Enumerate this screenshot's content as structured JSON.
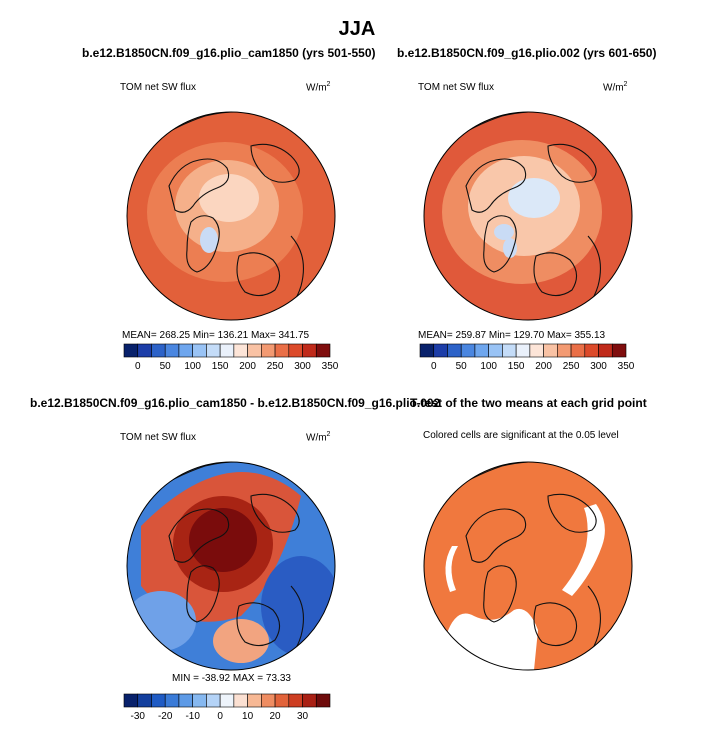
{
  "title": "JJA",
  "panels": [
    {
      "title": "b.e12.B1850CN.f09_g16.plio_cam1850 (yrs 501-550)",
      "left_label": "TOM net SW flux",
      "units": "W/m",
      "units_sup": "2",
      "stats": "MEAN= 268.25   Min= 136.21   Max= 341.75",
      "colorbar_ticks": [
        "0",
        "50",
        "100",
        "150",
        "200",
        "250",
        "300",
        "350"
      ]
    },
    {
      "title": "b.e12.B1850CN.f09_g16.plio.002 (yrs 601-650)",
      "left_label": "TOM net SW flux",
      "units": "W/m",
      "units_sup": "2",
      "stats": "MEAN= 259.87   Min= 129.70   Max= 355.13",
      "colorbar_ticks": [
        "0",
        "50",
        "100",
        "150",
        "200",
        "250",
        "300",
        "350"
      ]
    },
    {
      "title": "b.e12.B1850CN.f09_g16.plio_cam1850 - b.e12.B1850CN.f09_g16.plio.002",
      "left_label": "TOM net SW flux",
      "units": "W/m",
      "units_sup": "2",
      "stats": "MIN = -38.92  MAX =   73.33",
      "colorbar_ticks": [
        "-30",
        "-20",
        "-10",
        "0",
        "10",
        "20",
        "30"
      ]
    },
    {
      "title": "T-test of the two means at each grid point",
      "subtitle": "Colored cells are significant at the 0.05 level"
    }
  ],
  "colors": {
    "seq_scale": [
      "#08216b",
      "#1c3da8",
      "#2c62c8",
      "#4a86e0",
      "#6ea6ee",
      "#99c3f5",
      "#c4dcf8",
      "#eaf1fb",
      "#fde5d8",
      "#f9c2a4",
      "#f39a72",
      "#ea6f47",
      "#dc4a2a",
      "#c02a1a",
      "#7f0d0d"
    ],
    "div_scale": [
      "#08216b",
      "#133f9e",
      "#1f5bc4",
      "#3a7bd8",
      "#5d9ae6",
      "#86b8f0",
      "#b4d3f7",
      "#eef4fb",
      "#fbe0d2",
      "#f7b894",
      "#ef8d62",
      "#e2633a",
      "#cd3e22",
      "#a92014",
      "#6e0b0b"
    ],
    "sig_color": "#f0783e"
  }
}
